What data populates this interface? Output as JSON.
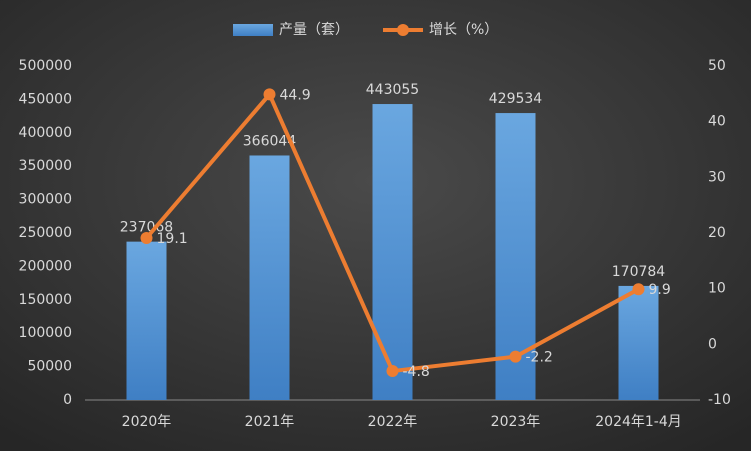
{
  "chart_data": {
    "type": "bar_line",
    "categories": [
      "2020年",
      "2021年",
      "2022年",
      "2023年",
      "2024年1-4月"
    ],
    "series": [
      {
        "name": "产量（套）",
        "type": "bar",
        "color": "#5b9bd5",
        "values": [
          237068,
          366044,
          443055,
          429534,
          170784
        ]
      },
      {
        "name": "增长（%）",
        "type": "line",
        "axis": "y2",
        "color": "#ed7d31",
        "values": [
          19.1,
          44.9,
          -4.8,
          -2.2,
          9.9
        ]
      }
    ],
    "ylim": [
      0,
      500000
    ],
    "yticks": [
      0,
      50000,
      100000,
      150000,
      200000,
      250000,
      300000,
      350000,
      400000,
      450000,
      500000
    ],
    "y2lim": [
      -10,
      50
    ],
    "y2ticks": [
      -10,
      0,
      10,
      20,
      30,
      40,
      50
    ],
    "grid": false,
    "legend": "top"
  }
}
